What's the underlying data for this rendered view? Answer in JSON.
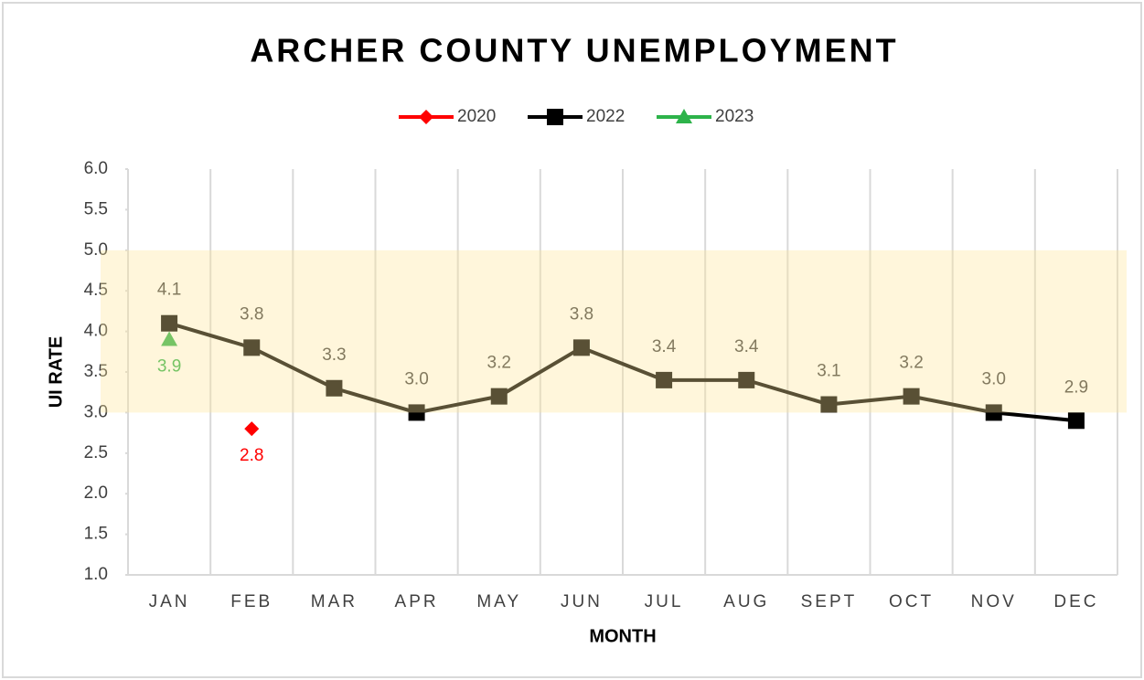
{
  "chart_data": {
    "type": "line",
    "title": "ARCHER COUNTY UNEMPLOYMENT",
    "x_label": "MONTH",
    "y_label": "UI RATE",
    "categories": [
      "JAN",
      "FEB",
      "MAR",
      "APR",
      "MAY",
      "JUN",
      "JUL",
      "AUG",
      "SEPT",
      "OCT",
      "NOV",
      "DEC"
    ],
    "series": [
      {
        "name": "2020",
        "color": "#ff0000",
        "marker": "diamond",
        "label_position": "below",
        "values": [
          null,
          2.8,
          null,
          null,
          null,
          null,
          null,
          null,
          null,
          null,
          null,
          null
        ],
        "value_labels": [
          null,
          "2.8",
          null,
          null,
          null,
          null,
          null,
          null,
          null,
          null,
          null,
          null
        ]
      },
      {
        "name": "2022",
        "color": "#000000",
        "marker": "square",
        "label_position": "above",
        "values": [
          4.1,
          3.8,
          3.3,
          3.0,
          3.2,
          3.8,
          3.4,
          3.4,
          3.1,
          3.2,
          3.0,
          2.9
        ],
        "value_labels": [
          "4.1",
          "3.8",
          "3.3",
          "3.0",
          "3.2",
          "3.8",
          "3.4",
          "3.4",
          "3.1",
          "3.2",
          "3.0",
          "2.9"
        ]
      },
      {
        "name": "2023",
        "color": "#2db34a",
        "marker": "triangle",
        "label_position": "below",
        "values": [
          3.9,
          null,
          null,
          null,
          null,
          null,
          null,
          null,
          null,
          null,
          null,
          null
        ],
        "value_labels": [
          "3.9",
          null,
          null,
          null,
          null,
          null,
          null,
          null,
          null,
          null,
          null,
          null
        ]
      }
    ],
    "ylim": [
      1,
      6
    ],
    "yticks": [
      {
        "value": 1,
        "label": "1.0"
      },
      {
        "value": 1.5,
        "label": "1.5"
      },
      {
        "value": 2,
        "label": "2.0"
      },
      {
        "value": 2.5,
        "label": "2.5"
      },
      {
        "value": 3,
        "label": "3.0"
      },
      {
        "value": 3.5,
        "label": "3.5"
      },
      {
        "value": 4,
        "label": "4.0"
      },
      {
        "value": 4.5,
        "label": "4.5"
      },
      {
        "value": 5,
        "label": "5.0"
      },
      {
        "value": 5.5,
        "label": "5.5"
      },
      {
        "value": 6,
        "label": "6.0"
      }
    ],
    "highlight_range": [
      3,
      5
    ],
    "highlight_color": "#ffe699",
    "legend": "top",
    "grid": "vertical"
  }
}
